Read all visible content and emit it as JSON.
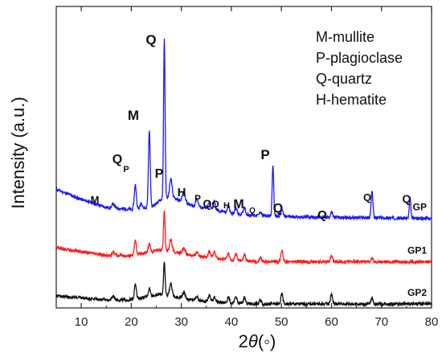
{
  "chart_data": {
    "type": "line",
    "title": "",
    "xlabel": "2θ(◦)",
    "xlabel_parts": {
      "two": "2",
      "theta": "θ",
      "unit": "(◦)"
    },
    "ylabel": "Intensity (a.u.)",
    "xlim": [
      5,
      80
    ],
    "xticks": [
      10,
      20,
      30,
      40,
      50,
      60,
      70,
      80
    ],
    "yticks_visible": false,
    "grid": false,
    "colors": {
      "GP": "#1a1aff",
      "GP1": "#ff1a1a",
      "GP2": "#111111"
    },
    "legend": [
      "M-mullite",
      "P-plagioclase",
      "Q-quartz",
      "H-hematite"
    ],
    "legend_placement": "top-right",
    "peak_labels": [
      {
        "text": "Q",
        "x": 26.6
      },
      {
        "text": "M",
        "x": 23.6
      },
      {
        "text": "Q",
        "x": 20.8
      },
      {
        "text": "P",
        "x": 22.0
      },
      {
        "text": "M",
        "x": 16.4
      },
      {
        "text": "P",
        "x": 27.9
      },
      {
        "text": "H",
        "x": 33.1
      },
      {
        "text": "P",
        "x": 35.6
      },
      {
        "text": "Q",
        "x": 36.6
      },
      {
        "text": "Q",
        "x": 39.4
      },
      {
        "text": "H",
        "x": 40.9
      },
      {
        "text": "M",
        "x": 42.6
      },
      {
        "text": "Q",
        "x": 45.8
      },
      {
        "text": "P",
        "x": 48.3
      },
      {
        "text": "Q",
        "x": 50.1
      },
      {
        "text": "Q",
        "x": 60.0
      },
      {
        "text": "Q",
        "x": 68.1
      },
      {
        "text": "Q",
        "x": 75.7
      }
    ],
    "series": [
      {
        "name": "GP",
        "baseline": [
          [
            5,
            19
          ],
          [
            10,
            14
          ],
          [
            15,
            10
          ],
          [
            20,
            9
          ],
          [
            24,
            10
          ],
          [
            26,
            14
          ],
          [
            28,
            15
          ],
          [
            32,
            11
          ],
          [
            36,
            9
          ],
          [
            40,
            7
          ],
          [
            45,
            6
          ],
          [
            50,
            5.5
          ],
          [
            60,
            5
          ],
          [
            70,
            4.8
          ],
          [
            80,
            4.5
          ]
        ],
        "peaks": [
          [
            16.4,
            2,
            0.25
          ],
          [
            20.8,
            12,
            0.2
          ],
          [
            22.0,
            3,
            0.2
          ],
          [
            23.6,
            38,
            0.18
          ],
          [
            26.6,
            79,
            0.15
          ],
          [
            27.9,
            9,
            0.25
          ],
          [
            30.5,
            5,
            0.3
          ],
          [
            33.1,
            4,
            0.25
          ],
          [
            35.6,
            3,
            0.25
          ],
          [
            36.6,
            4,
            0.2
          ],
          [
            39.4,
            4,
            0.2
          ],
          [
            40.9,
            3,
            0.2
          ],
          [
            42.6,
            4,
            0.2
          ],
          [
            45.8,
            2,
            0.2
          ],
          [
            48.3,
            26,
            0.15
          ],
          [
            50.1,
            4,
            0.2
          ],
          [
            60.0,
            3,
            0.2
          ],
          [
            68.1,
            13,
            0.18
          ],
          [
            75.7,
            10,
            0.15
          ]
        ]
      },
      {
        "name": "GP1",
        "baseline": [
          [
            5,
            12
          ],
          [
            10,
            10
          ],
          [
            15,
            8
          ],
          [
            20,
            8
          ],
          [
            24,
            10
          ],
          [
            26,
            11
          ],
          [
            28,
            10
          ],
          [
            32,
            8
          ],
          [
            36,
            7
          ],
          [
            40,
            6
          ],
          [
            45,
            5
          ],
          [
            50,
            5
          ],
          [
            60,
            5
          ],
          [
            70,
            5
          ],
          [
            80,
            5
          ]
        ],
        "peaks": [
          [
            16.4,
            2,
            0.25
          ],
          [
            20.8,
            7,
            0.2
          ],
          [
            23.6,
            4,
            0.2
          ],
          [
            26.6,
            20,
            0.15
          ],
          [
            27.9,
            6,
            0.25
          ],
          [
            30.5,
            3,
            0.3
          ],
          [
            33.1,
            2,
            0.25
          ],
          [
            35.6,
            3,
            0.25
          ],
          [
            36.6,
            3,
            0.2
          ],
          [
            39.4,
            3,
            0.2
          ],
          [
            40.9,
            3,
            0.2
          ],
          [
            42.6,
            3,
            0.2
          ],
          [
            45.8,
            2,
            0.2
          ],
          [
            50.1,
            6,
            0.2
          ],
          [
            60.0,
            3,
            0.2
          ],
          [
            68.1,
            2,
            0.2
          ]
        ]
      },
      {
        "name": "GP2",
        "baseline": [
          [
            5,
            6
          ],
          [
            10,
            5
          ],
          [
            15,
            4
          ],
          [
            20,
            4
          ],
          [
            24,
            6
          ],
          [
            26,
            7
          ],
          [
            28,
            6
          ],
          [
            32,
            4
          ],
          [
            36,
            3
          ],
          [
            40,
            2.5
          ],
          [
            45,
            2
          ],
          [
            50,
            2
          ],
          [
            60,
            2
          ],
          [
            70,
            2
          ],
          [
            80,
            2
          ]
        ],
        "peaks": [
          [
            16.4,
            2,
            0.25
          ],
          [
            20.8,
            8,
            0.2
          ],
          [
            23.6,
            4,
            0.2
          ],
          [
            26.6,
            16,
            0.15
          ],
          [
            27.9,
            6,
            0.25
          ],
          [
            30.5,
            3,
            0.3
          ],
          [
            33.1,
            2,
            0.25
          ],
          [
            35.6,
            3,
            0.25
          ],
          [
            36.6,
            3,
            0.2
          ],
          [
            39.4,
            3,
            0.2
          ],
          [
            40.9,
            3,
            0.2
          ],
          [
            42.6,
            3,
            0.2
          ],
          [
            45.8,
            2,
            0.2
          ],
          [
            50.1,
            5,
            0.2
          ],
          [
            60.0,
            5,
            0.2
          ],
          [
            68.1,
            3,
            0.2
          ]
        ]
      }
    ]
  }
}
